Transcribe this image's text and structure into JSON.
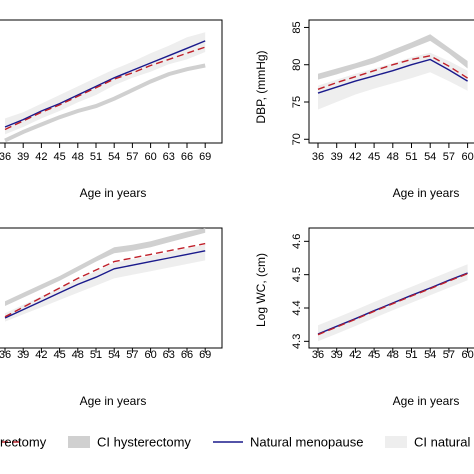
{
  "chart_data": [
    {
      "type": "line",
      "panel": "top-left",
      "xlabel": "Age in years",
      "ylabel": "",
      "x_tick_labels": [
        "36",
        "39",
        "42",
        "45",
        "48",
        "51",
        "54",
        "57",
        "60",
        "63",
        "66",
        "69"
      ],
      "x": [
        36,
        39,
        42,
        45,
        48,
        51,
        54,
        57,
        60,
        63,
        66,
        69
      ],
      "ylim": [
        0,
        10
      ],
      "series": [
        {
          "name": "Natural menopause",
          "values": [
            1.3,
            1.9,
            2.6,
            3.2,
            3.9,
            4.6,
            5.3,
            5.9,
            6.5,
            7.1,
            7.7,
            8.3
          ]
        },
        {
          "name": "Hysterectomy",
          "values": [
            1.1,
            1.8,
            2.5,
            3.1,
            3.8,
            4.5,
            5.2,
            5.7,
            6.3,
            6.8,
            7.3,
            7.8
          ]
        },
        {
          "name": "CI hysterectomy",
          "values": [
            0.2,
            0.9,
            1.5,
            2.1,
            2.6,
            3.0,
            3.6,
            4.3,
            5.0,
            5.6,
            6.0,
            6.3
          ]
        },
        {
          "name": "CI natural menopause",
          "lower": [
            0.7,
            1.3,
            2.0,
            2.6,
            3.3,
            3.9,
            4.7,
            5.3,
            5.8,
            6.4,
            6.8,
            7.4
          ],
          "upper": [
            2.0,
            2.5,
            3.2,
            3.9,
            4.6,
            5.3,
            6.0,
            6.6,
            7.3,
            7.9,
            8.6,
            9.0
          ]
        }
      ]
    },
    {
      "type": "line",
      "panel": "top-right",
      "xlabel": "Age in years",
      "ylabel": "DBP, (mmHg)",
      "y_tick_labels": [
        "70",
        "75",
        "80",
        "85"
      ],
      "x_tick_labels": [
        "36",
        "39",
        "42",
        "45",
        "48",
        "51",
        "54",
        "57",
        "60"
      ],
      "x": [
        36,
        39,
        42,
        45,
        48,
        51,
        54,
        57,
        60
      ],
      "ylim": [
        69.5,
        86
      ],
      "series": [
        {
          "name": "Natural menopause",
          "values": [
            76.2,
            77.0,
            77.8,
            78.5,
            79.2,
            80.0,
            80.7,
            79.3,
            77.8
          ]
        },
        {
          "name": "Hysterectomy",
          "values": [
            76.7,
            77.6,
            78.4,
            79.2,
            80.0,
            80.7,
            81.2,
            79.8,
            78.2
          ]
        },
        {
          "name": "CI hysterectomy",
          "lower": [
            78.0,
            78.7,
            79.5,
            80.2,
            81.2,
            82.2,
            83.2,
            81.5,
            79.5
          ],
          "upper": [
            78.8,
            79.5,
            80.2,
            81.0,
            82.0,
            83.0,
            84.1,
            82.3,
            80.5
          ]
        },
        {
          "name": "CI natural menopause",
          "lower": [
            74.0,
            75.0,
            76.0,
            76.8,
            77.5,
            78.2,
            79.0,
            77.8,
            76.5
          ],
          "upper": [
            77.2,
            78.0,
            78.8,
            79.5,
            80.2,
            81.0,
            81.6,
            80.5,
            79.2
          ]
        }
      ]
    },
    {
      "type": "line",
      "panel": "bottom-left",
      "xlabel": "Age in years",
      "ylabel": "",
      "x_tick_labels": [
        "36",
        "39",
        "42",
        "45",
        "48",
        "51",
        "54",
        "57",
        "60",
        "63",
        "66",
        "69"
      ],
      "x": [
        36,
        39,
        42,
        45,
        48,
        51,
        54,
        57,
        60,
        63,
        66,
        69
      ],
      "ylim": [
        0,
        10
      ],
      "series": [
        {
          "name": "Natural menopause",
          "values": [
            2.5,
            3.2,
            3.9,
            4.6,
            5.3,
            5.9,
            6.6,
            6.9,
            7.2,
            7.5,
            7.8,
            8.1
          ]
        },
        {
          "name": "Hysterectomy",
          "values": [
            2.6,
            3.4,
            4.2,
            5.0,
            5.8,
            6.5,
            7.2,
            7.5,
            7.8,
            8.1,
            8.4,
            8.7
          ]
        },
        {
          "name": "CI hysterectomy",
          "lower": [
            3.5,
            4.2,
            4.9,
            5.6,
            6.4,
            7.2,
            7.9,
            8.1,
            8.4,
            8.8,
            9.2,
            9.6
          ],
          "upper": [
            3.9,
            4.6,
            5.3,
            6.0,
            6.8,
            7.6,
            8.4,
            8.6,
            8.9,
            9.3,
            9.7,
            10.0
          ]
        },
        {
          "name": "CI natural menopause",
          "lower": [
            2.2,
            2.8,
            3.4,
            4.0,
            4.6,
            5.2,
            5.8,
            6.1,
            6.4,
            6.7,
            7.0,
            7.3
          ],
          "upper": [
            2.9,
            3.6,
            4.3,
            5.0,
            5.7,
            6.4,
            7.1,
            7.4,
            7.7,
            8.0,
            8.3,
            8.6
          ]
        }
      ]
    },
    {
      "type": "line",
      "panel": "bottom-right",
      "xlabel": "Age in years",
      "ylabel": "Log WC, (cm)",
      "y_tick_labels": [
        "4.3",
        "4.4",
        "4.5",
        "4.6"
      ],
      "x_tick_labels": [
        "36",
        "39",
        "42",
        "45",
        "48",
        "51",
        "54",
        "57",
        "60"
      ],
      "x": [
        36,
        39,
        42,
        45,
        48,
        51,
        54,
        57,
        60
      ],
      "ylim": [
        4.28,
        4.64
      ],
      "series": [
        {
          "name": "Natural menopause",
          "values": [
            4.322,
            4.345,
            4.368,
            4.392,
            4.415,
            4.438,
            4.46,
            4.483,
            4.505
          ]
        },
        {
          "name": "Hysterectomy",
          "values": [
            4.32,
            4.343,
            4.366,
            4.39,
            4.413,
            4.436,
            4.458,
            4.481,
            4.503
          ]
        },
        {
          "name": "CI hysterectomy",
          "lower": [
            4.318,
            4.341,
            4.364,
            4.388,
            4.411,
            4.434,
            4.456,
            4.479,
            4.501
          ],
          "upper": [
            4.33,
            4.353,
            4.376,
            4.4,
            4.423,
            4.446,
            4.468,
            4.491,
            4.513
          ]
        },
        {
          "name": "CI natural menopause",
          "lower": [
            4.3,
            4.323,
            4.346,
            4.37,
            4.393,
            4.416,
            4.438,
            4.461,
            4.483
          ],
          "upper": [
            4.348,
            4.371,
            4.394,
            4.418,
            4.441,
            4.464,
            4.486,
            4.509,
            4.531
          ]
        }
      ]
    }
  ],
  "legend": {
    "items": [
      {
        "label": "rectomy",
        "kind": "line",
        "color": "#c0202a",
        "dash": true
      },
      {
        "label": "CI hysterectomy",
        "kind": "box",
        "color": "#d0d0d0"
      },
      {
        "label": "Natural menopause",
        "kind": "line",
        "color": "#1a1a8c",
        "dash": false
      },
      {
        "label": "CI natural",
        "kind": "box",
        "color": "#eeeeee"
      }
    ]
  },
  "colors": {
    "natural": "#1a1a8c",
    "hysterectomy": "#c0202a",
    "ci_hysterectomy": "#d0d0d0",
    "ci_natural": "#eeeeee"
  }
}
